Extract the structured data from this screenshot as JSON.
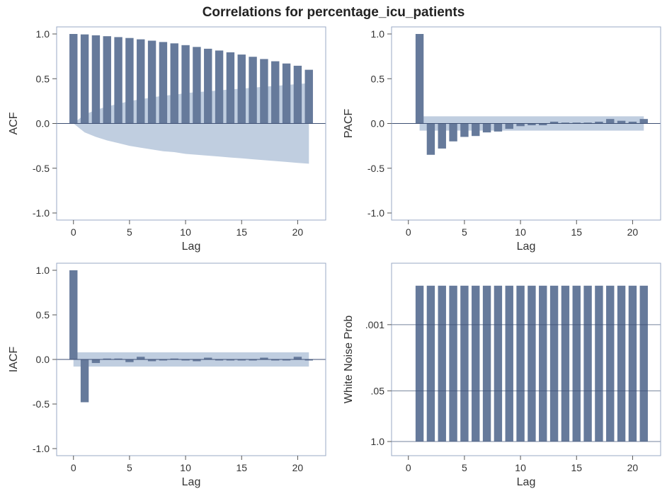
{
  "title": "Correlations for percentage_icu_patients",
  "colors": {
    "bar": "#667a9b",
    "band": "#c0cee0",
    "frame": "#9aaac4",
    "axis_line": "#3d4f73",
    "text": "#333333"
  },
  "chart_data": [
    {
      "type": "bar",
      "ylabel": "ACF",
      "xlabel": "Lag",
      "x_ticks": [
        "0",
        "5",
        "10",
        "15",
        "20"
      ],
      "y_ticks": [
        "1.0",
        "0.5",
        "0.0",
        "-0.5",
        "-1.0"
      ],
      "ylim": [
        -1.0,
        1.0
      ],
      "xlim": [
        -1.5,
        22.5
      ],
      "lags": [
        0,
        1,
        2,
        3,
        4,
        5,
        6,
        7,
        8,
        9,
        10,
        11,
        12,
        13,
        14,
        15,
        16,
        17,
        18,
        19,
        20,
        21
      ],
      "values": [
        1.0,
        0.995,
        0.985,
        0.975,
        0.965,
        0.955,
        0.94,
        0.925,
        0.91,
        0.895,
        0.875,
        0.855,
        0.835,
        0.815,
        0.795,
        0.77,
        0.745,
        0.72,
        0.695,
        0.67,
        0.645,
        0.6
      ],
      "band_upper": [
        0.0,
        0.1,
        0.15,
        0.19,
        0.22,
        0.25,
        0.27,
        0.29,
        0.31,
        0.32,
        0.34,
        0.35,
        0.36,
        0.37,
        0.38,
        0.39,
        0.4,
        0.41,
        0.42,
        0.43,
        0.44,
        0.45
      ],
      "band_lower": [
        0.0,
        -0.1,
        -0.15,
        -0.19,
        -0.22,
        -0.25,
        -0.27,
        -0.29,
        -0.31,
        -0.32,
        -0.34,
        -0.35,
        -0.36,
        -0.37,
        -0.38,
        -0.39,
        -0.4,
        -0.41,
        -0.42,
        -0.43,
        -0.44,
        -0.45
      ]
    },
    {
      "type": "bar",
      "ylabel": "PACF",
      "xlabel": "Lag",
      "x_ticks": [
        "0",
        "5",
        "10",
        "15",
        "20"
      ],
      "y_ticks": [
        "1.0",
        "0.5",
        "0.0",
        "-0.5",
        "-1.0"
      ],
      "ylim": [
        -1.0,
        1.0
      ],
      "xlim": [
        -1.5,
        22.5
      ],
      "lags": [
        1,
        2,
        3,
        4,
        5,
        6,
        7,
        8,
        9,
        10,
        11,
        12,
        13,
        14,
        15,
        16,
        17,
        18,
        19,
        20,
        21
      ],
      "values": [
        1.0,
        -0.35,
        -0.28,
        -0.2,
        -0.15,
        -0.14,
        -0.1,
        -0.09,
        -0.06,
        -0.03,
        -0.02,
        -0.02,
        0.02,
        0.01,
        0.01,
        0.01,
        0.02,
        0.05,
        0.03,
        0.02,
        0.05
      ],
      "band": 0.08
    },
    {
      "type": "bar",
      "ylabel": "IACF",
      "xlabel": "Lag",
      "x_ticks": [
        "0",
        "5",
        "10",
        "15",
        "20"
      ],
      "y_ticks": [
        "1.0",
        "0.5",
        "0.0",
        "-0.5",
        "-1.0"
      ],
      "ylim": [
        -1.0,
        1.0
      ],
      "xlim": [
        -1.5,
        22.5
      ],
      "lags": [
        0,
        1,
        2,
        3,
        4,
        5,
        6,
        7,
        8,
        9,
        10,
        11,
        12,
        13,
        14,
        15,
        16,
        17,
        18,
        19,
        20,
        21
      ],
      "values": [
        1.0,
        -0.48,
        -0.04,
        0.01,
        0.01,
        -0.03,
        0.03,
        -0.02,
        0.0,
        0.01,
        0.0,
        -0.02,
        0.02,
        0.0,
        -0.01,
        0.0,
        0.0,
        0.02,
        0.0,
        0.0,
        0.03,
        -0.01
      ],
      "band": 0.08
    },
    {
      "type": "bar",
      "ylabel": "White Noise Prob",
      "xlabel": "Lag",
      "x_ticks": [
        "0",
        "5",
        "10",
        "15",
        "20"
      ],
      "y_ticks": [
        ".001",
        ".05",
        "1.0"
      ],
      "scale": "log",
      "xlim": [
        -1.5,
        22.5
      ],
      "lags": [
        1,
        2,
        3,
        4,
        5,
        6,
        7,
        8,
        9,
        10,
        11,
        12,
        13,
        14,
        15,
        16,
        17,
        18,
        19,
        20,
        21
      ],
      "p_values": [
        0.0001,
        0.0001,
        0.0001,
        0.0001,
        0.0001,
        0.0001,
        0.0001,
        0.0001,
        0.0001,
        0.0001,
        0.0001,
        0.0001,
        0.0001,
        0.0001,
        0.0001,
        0.0001,
        0.0001,
        0.0001,
        0.0001,
        0.0001,
        0.0001
      ]
    }
  ]
}
